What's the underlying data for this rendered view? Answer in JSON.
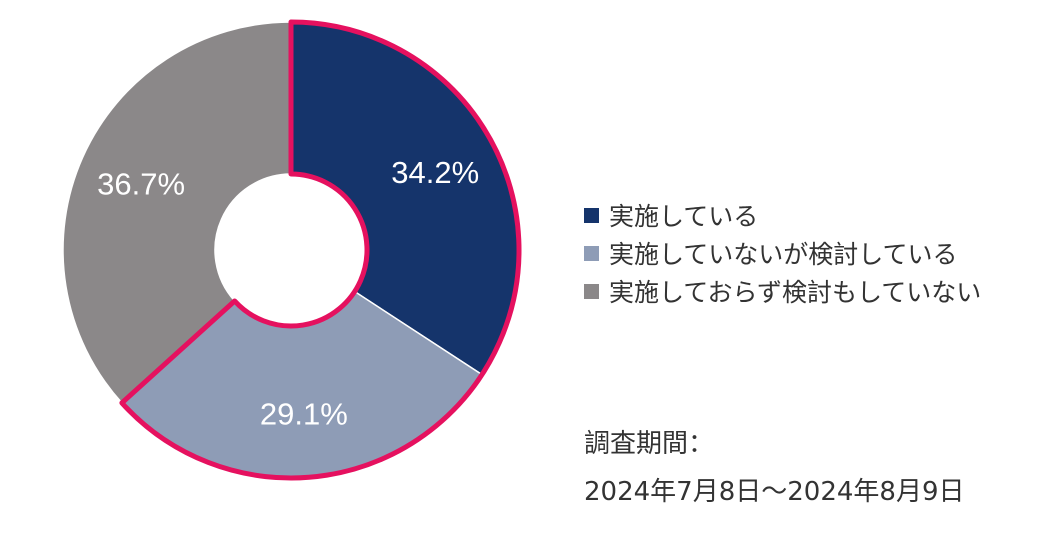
{
  "chart_data": {
    "type": "pie",
    "variant": "donut",
    "title": "",
    "slices": [
      {
        "label": "実施している",
        "value": 34.2,
        "value_label": "34.2%",
        "color": "#15346b",
        "highlighted": true
      },
      {
        "label": "実施していないが検討している",
        "value": 29.1,
        "value_label": "29.1%",
        "color": "#8e9cb6",
        "highlighted": true
      },
      {
        "label": "実施しておらず検討もしていない",
        "value": 36.7,
        "value_label": "36.7%",
        "color": "#8b8889",
        "highlighted": false
      }
    ],
    "legend_position": "right",
    "highlight_color": "#e5115f",
    "label_color": "#ffffff"
  },
  "survey": {
    "label": "調査期間：",
    "range": "2024年7月8日～2024年8月9日"
  }
}
